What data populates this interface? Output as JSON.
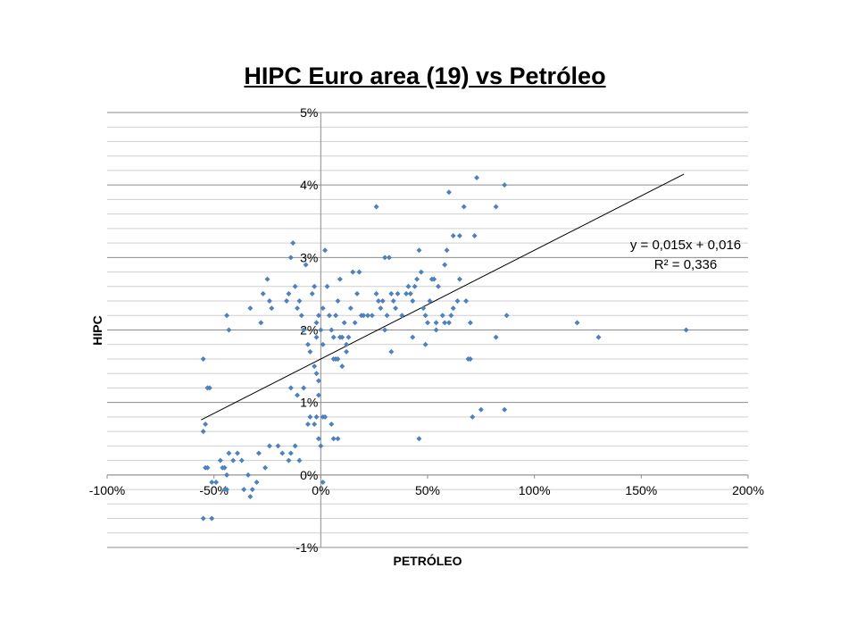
{
  "chart_data": {
    "type": "scatter",
    "title": "HIPC Euro area (19) vs Petróleo",
    "xlabel": "PETRÓLEO",
    "ylabel": "HIPC",
    "xlim": [
      -1.0,
      2.0
    ],
    "ylim": [
      -0.01,
      0.05
    ],
    "x_tick_values": [
      -1.0,
      -0.5,
      0.0,
      0.5,
      1.0,
      1.5,
      2.0
    ],
    "x_tick_labels": [
      "-100%",
      "-50%",
      "0%",
      "50%",
      "100%",
      "150%",
      "200%"
    ],
    "y_tick_values": [
      -0.01,
      0.0,
      0.01,
      0.02,
      0.03,
      0.04,
      0.05
    ],
    "y_tick_labels": [
      "-1%",
      "0%",
      "1%",
      "2%",
      "3%",
      "4%",
      "5%"
    ],
    "minor_grid_step": 0.002,
    "grid": true,
    "legend": "none",
    "point_color": "#4f81bd",
    "trendline": {
      "x_range": [
        -0.56,
        1.7
      ],
      "slope": 0.015,
      "intercept": 0.016,
      "equation_label": "y = 0,015x + 0,016",
      "r2_label": "R² = 0,336"
    },
    "points": [
      [
        -0.55,
        -0.006
      ],
      [
        -0.51,
        -0.006
      ],
      [
        -0.55,
        0.006
      ],
      [
        -0.54,
        0.007
      ],
      [
        -0.55,
        0.016
      ],
      [
        -0.53,
        0.012
      ],
      [
        -0.52,
        0.012
      ],
      [
        -0.54,
        0.001
      ],
      [
        -0.53,
        0.001
      ],
      [
        -0.51,
        -0.001
      ],
      [
        -0.49,
        -0.001
      ],
      [
        -0.47,
        0.002
      ],
      [
        -0.46,
        0.001
      ],
      [
        -0.45,
        0.001
      ],
      [
        -0.45,
        -0.002
      ],
      [
        -0.44,
        -0.002
      ],
      [
        -0.44,
        0.0
      ],
      [
        -0.43,
        0.003
      ],
      [
        -0.41,
        0.002
      ],
      [
        -0.39,
        0.003
      ],
      [
        -0.37,
        0.002
      ],
      [
        -0.36,
        -0.002
      ],
      [
        -0.34,
        0.0
      ],
      [
        -0.33,
        -0.003
      ],
      [
        -0.32,
        -0.002
      ],
      [
        -0.3,
        -0.001
      ],
      [
        -0.29,
        0.003
      ],
      [
        -0.26,
        0.001
      ],
      [
        -0.24,
        0.004
      ],
      [
        -0.2,
        0.004
      ],
      [
        -0.18,
        0.003
      ],
      [
        -0.15,
        0.002
      ],
      [
        -0.14,
        0.003
      ],
      [
        -0.12,
        0.004
      ],
      [
        -0.1,
        0.002
      ],
      [
        -0.44,
        0.022
      ],
      [
        -0.43,
        0.02
      ],
      [
        -0.33,
        0.023
      ],
      [
        -0.28,
        0.021
      ],
      [
        -0.27,
        0.025
      ],
      [
        -0.25,
        0.027
      ],
      [
        -0.24,
        0.024
      ],
      [
        -0.23,
        0.023
      ],
      [
        -0.16,
        0.024
      ],
      [
        -0.15,
        0.025
      ],
      [
        -0.14,
        0.03
      ],
      [
        -0.13,
        0.032
      ],
      [
        -0.12,
        0.026
      ],
      [
        -0.11,
        0.023
      ],
      [
        -0.1,
        0.024
      ],
      [
        -0.09,
        0.022
      ],
      [
        -0.08,
        0.02
      ],
      [
        -0.07,
        0.029
      ],
      [
        -0.06,
        0.018
      ],
      [
        -0.05,
        0.017
      ],
      [
        -0.04,
        0.025
      ],
      [
        -0.03,
        0.026
      ],
      [
        -0.02,
        0.021
      ],
      [
        -0.02,
        0.019
      ],
      [
        -0.01,
        0.022
      ],
      [
        0.0,
        0.02
      ],
      [
        0.01,
        0.023
      ],
      [
        0.01,
        0.018
      ],
      [
        0.02,
        0.031
      ],
      [
        0.03,
        0.026
      ],
      [
        0.04,
        0.022
      ],
      [
        0.05,
        0.02
      ],
      [
        0.06,
        0.016
      ],
      [
        0.07,
        0.022
      ],
      [
        0.08,
        0.024
      ],
      [
        0.09,
        0.027
      ],
      [
        0.1,
        0.019
      ],
      [
        0.11,
        0.021
      ],
      [
        0.12,
        0.018
      ],
      [
        0.13,
        0.019
      ],
      [
        0.14,
        0.023
      ],
      [
        0.15,
        0.028
      ],
      [
        0.16,
        0.021
      ],
      [
        0.17,
        0.025
      ],
      [
        0.18,
        0.028
      ],
      [
        0.19,
        0.022
      ],
      [
        0.2,
        0.022
      ],
      [
        0.22,
        0.022
      ],
      [
        0.24,
        0.022
      ],
      [
        0.26,
        0.025
      ],
      [
        0.27,
        0.024
      ],
      [
        0.28,
        0.023
      ],
      [
        0.29,
        0.024
      ],
      [
        0.3,
        0.03
      ],
      [
        0.31,
        0.022
      ],
      [
        0.32,
        0.03
      ],
      [
        0.33,
        0.025
      ],
      [
        0.34,
        0.024
      ],
      [
        0.35,
        0.023
      ],
      [
        0.36,
        0.025
      ],
      [
        0.38,
        0.022
      ],
      [
        0.4,
        0.025
      ],
      [
        0.41,
        0.026
      ],
      [
        0.42,
        0.025
      ],
      [
        0.43,
        0.024
      ],
      [
        0.44,
        0.026
      ],
      [
        0.45,
        0.027
      ],
      [
        0.46,
        0.031
      ],
      [
        0.47,
        0.028
      ],
      [
        0.48,
        0.023
      ],
      [
        0.49,
        0.022
      ],
      [
        0.5,
        0.021
      ],
      [
        0.51,
        0.024
      ],
      [
        0.52,
        0.027
      ],
      [
        0.53,
        0.027
      ],
      [
        0.54,
        0.021
      ],
      [
        0.55,
        0.026
      ],
      [
        0.57,
        0.022
      ],
      [
        0.58,
        0.021
      ],
      [
        0.6,
        0.021
      ],
      [
        0.61,
        0.022
      ],
      [
        0.62,
        0.023
      ],
      [
        0.64,
        0.024
      ],
      [
        0.65,
        0.027
      ],
      [
        0.68,
        0.024
      ],
      [
        0.7,
        0.021
      ],
      [
        0.3,
        0.02
      ],
      [
        0.33,
        0.017
      ],
      [
        0.43,
        0.019
      ],
      [
        0.49,
        0.018
      ],
      [
        0.54,
        0.02
      ],
      [
        0.58,
        0.029
      ],
      [
        0.59,
        0.031
      ],
      [
        0.6,
        0.039
      ],
      [
        0.62,
        0.033
      ],
      [
        0.65,
        0.033
      ],
      [
        0.67,
        0.037
      ],
      [
        0.72,
        0.033
      ],
      [
        0.73,
        0.041
      ],
      [
        0.82,
        0.037
      ],
      [
        0.86,
        0.04
      ],
      [
        0.26,
        0.037
      ],
      [
        0.82,
        0.019
      ],
      [
        0.87,
        0.022
      ],
      [
        0.69,
        0.016
      ],
      [
        0.7,
        0.016
      ],
      [
        0.71,
        0.008
      ],
      [
        0.75,
        0.009
      ],
      [
        0.86,
        0.009
      ],
      [
        0.46,
        0.005
      ],
      [
        1.2,
        0.021
      ],
      [
        1.3,
        0.019
      ],
      [
        1.71,
        0.02
      ],
      [
        -0.03,
        0.015
      ],
      [
        -0.02,
        0.014
      ],
      [
        -0.01,
        0.013
      ],
      [
        -0.01,
        0.011
      ],
      [
        -0.06,
        0.007
      ],
      [
        -0.05,
        0.008
      ],
      [
        -0.03,
        0.007
      ],
      [
        -0.02,
        0.008
      ],
      [
        -0.01,
        0.005
      ],
      [
        0.0,
        0.004
      ],
      [
        0.01,
        0.008
      ],
      [
        0.02,
        0.008
      ],
      [
        0.05,
        0.007
      ],
      [
        0.06,
        0.005
      ],
      [
        0.08,
        0.005
      ],
      [
        -0.14,
        0.012
      ],
      [
        -0.11,
        0.011
      ],
      [
        0.01,
        -0.001
      ],
      [
        -0.08,
        0.012
      ],
      [
        0.07,
        0.016
      ],
      [
        0.08,
        0.016
      ],
      [
        0.1,
        0.015
      ],
      [
        0.12,
        0.017
      ],
      [
        0.09,
        0.019
      ],
      [
        0.06,
        0.019
      ]
    ]
  }
}
